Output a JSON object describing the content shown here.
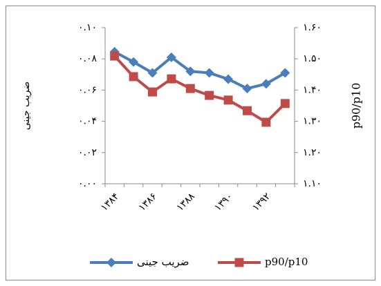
{
  "chart_data": {
    "type": "line",
    "categories": [
      "۱۳۸۴",
      null,
      "۱۳۸۶",
      null,
      "۱۳۸۸",
      null,
      "۱۳۹۰",
      null,
      "۱۳۹۲",
      null
    ],
    "y_label": "ضریب جینی",
    "y2_label": "p90/p10",
    "ylim": [
      0,
      0.1
    ],
    "yticks": [
      {
        "value": 0,
        "label": "۰.۰۰"
      },
      {
        "value": 0.02,
        "label": "۰.۰۲"
      },
      {
        "value": 0.04,
        "label": "۰.۰۴"
      },
      {
        "value": 0.06,
        "label": "۰.۰۶"
      },
      {
        "value": 0.08,
        "label": "۰.۰۸"
      },
      {
        "value": 0.1,
        "label": "۰.۱۰"
      }
    ],
    "y2lim": [
      1.1,
      1.6
    ],
    "y2ticks": [
      {
        "value": 1.1,
        "label": "۱.۱۰"
      },
      {
        "value": 1.2,
        "label": "۱.۲۰"
      },
      {
        "value": 1.3,
        "label": "۱.۳۰"
      },
      {
        "value": 1.4,
        "label": "۱.۴۰"
      },
      {
        "value": 1.5,
        "label": "۱.۵۰"
      },
      {
        "value": 1.6,
        "label": "۱.۶۰"
      }
    ],
    "series": [
      {
        "name": "ضریب جینی",
        "color": "#4a7ebb",
        "marker": "diamond",
        "values": [
          0.0845,
          0.078,
          0.071,
          0.081,
          0.072,
          0.071,
          0.067,
          0.061,
          0.064,
          0.071
        ]
      },
      {
        "name": "p90/p10",
        "color": "#be4b48",
        "marker": "square",
        "axis": "y2",
        "values": [
          1.509,
          1.443,
          1.394,
          1.436,
          1.405,
          1.383,
          1.368,
          1.334,
          1.297,
          1.357
        ]
      }
    ]
  }
}
